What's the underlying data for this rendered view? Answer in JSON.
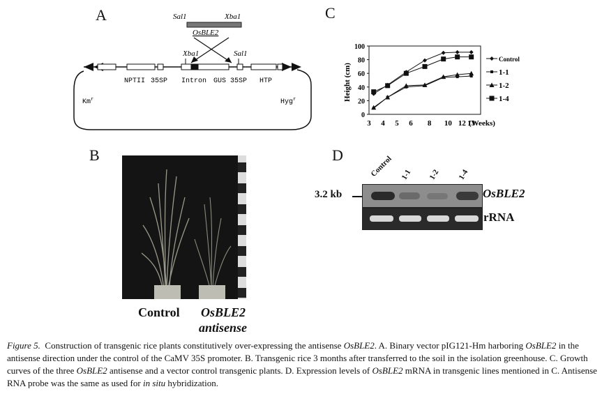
{
  "panels": {
    "a": "A",
    "b": "B",
    "c": "C",
    "d": "D"
  },
  "vector": {
    "sal1_top": "Sal1",
    "xba1_top": "Xba1",
    "insert": "OsBLE2",
    "xba1_left": "Xba1",
    "sal1_right": "Sal1",
    "labels": [
      "NPTII",
      "35SP",
      "Intron",
      "GUS",
      "35SP",
      "HTP"
    ],
    "kmr": "Km",
    "kmr_sup": "r",
    "hygr": "Hyg",
    "hygr_sup": "r"
  },
  "photo": {
    "label_control": "Control",
    "label_gene": "OsBLE2",
    "label_antisense": "antisense"
  },
  "chart_data": {
    "type": "line",
    "ylabel": "Height (cm)",
    "x_unit": "(Weeks)",
    "x_ticks": [
      "3",
      "4",
      "5",
      "6",
      "8",
      "10",
      "12",
      "13"
    ],
    "y_ticks": [
      0,
      20,
      40,
      60,
      80,
      100
    ],
    "ylim": [
      0,
      100
    ],
    "legend_position": "right",
    "series": [
      {
        "name": "Control",
        "marker": "diamond",
        "values": [
          30,
          43,
          62,
          79,
          90,
          91,
          91
        ]
      },
      {
        "name": "1-1",
        "marker": "small-square",
        "values": [
          9,
          25,
          40,
          42,
          54,
          55,
          56
        ]
      },
      {
        "name": "1-2",
        "marker": "triangle",
        "values": [
          10,
          25,
          42,
          43,
          55,
          58,
          60
        ]
      },
      {
        "name": "1-4",
        "marker": "square",
        "values": [
          33,
          42,
          60,
          70,
          81,
          84,
          84
        ]
      }
    ],
    "x_points": [
      3.5,
      5,
      7,
      9,
      11,
      12.5,
      14
    ]
  },
  "blot": {
    "lanes": [
      "Control",
      "1-1",
      "1-2",
      "1-4"
    ],
    "size_marker": "3.2 kb",
    "gene_label": "OsBLE2",
    "rrna_label": "rRNA"
  },
  "caption": {
    "fig": "Figure 5.",
    "t1": "Construction of transgenic rice plants constitutively over-expressing the antisense ",
    "g1": "OsBLE2",
    "t2": ". A. Binary vector pIG121-Hm harboring ",
    "g2": "OsBLE2",
    "t3": " in the antisense direction under the control of the CaMV 35S promoter. B. Transgenic rice 3 months after transferred to the soil in the isolation greenhouse. C. Growth curves of the three ",
    "g3": "OsBLE2",
    "t4": " antisense and a vector control transgenic plants. D. Expression levels of ",
    "g4": "OsBLE2",
    "t5": " mRNA in transgenic lines mentioned in C. Antisense RNA probe was the same as used for ",
    "g5": "in situ",
    "t6": " hybridization."
  }
}
